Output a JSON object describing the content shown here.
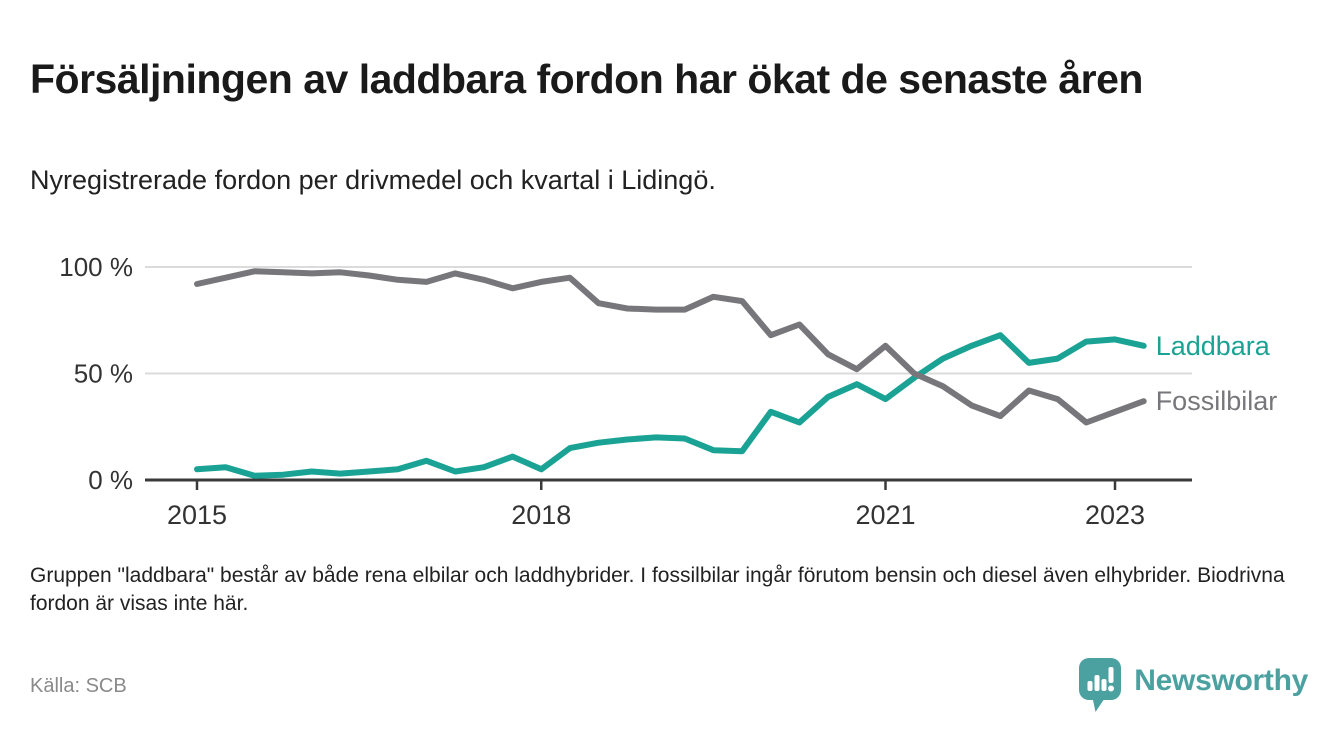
{
  "header": {
    "title": "Försäljningen av laddbara fordon har ökat de senaste åren",
    "subtitle": "Nyregistrerade fordon per drivmedel och kvartal i Lidingö."
  },
  "chart_data": {
    "type": "line",
    "unit": "%",
    "x": [
      "2015 Q1",
      "2015 Q2",
      "2015 Q3",
      "2015 Q4",
      "2016 Q1",
      "2016 Q2",
      "2016 Q3",
      "2016 Q4",
      "2017 Q1",
      "2017 Q2",
      "2017 Q3",
      "2017 Q4",
      "2018 Q1",
      "2018 Q2",
      "2018 Q3",
      "2018 Q4",
      "2019 Q1",
      "2019 Q2",
      "2019 Q3",
      "2019 Q4",
      "2020 Q1",
      "2020 Q2",
      "2020 Q3",
      "2020 Q4",
      "2021 Q1",
      "2021 Q2",
      "2021 Q3",
      "2021 Q4",
      "2022 Q1",
      "2022 Q2",
      "2022 Q3",
      "2022 Q4",
      "2023 Q1",
      "2023 Q2"
    ],
    "series": [
      {
        "name": "Laddbara",
        "color": "#1AA394",
        "values": [
          5,
          6,
          2,
          2.5,
          4,
          3,
          4,
          5,
          9,
          4,
          6,
          11,
          5,
          15,
          17.5,
          19,
          20,
          19.5,
          14,
          13.5,
          32,
          27,
          39,
          45,
          38,
          48,
          57,
          63,
          68,
          55,
          57,
          65,
          66,
          63
        ]
      },
      {
        "name": "Fossilbilar",
        "color": "#77777B",
        "values": [
          92,
          95,
          98,
          97.5,
          97,
          97.5,
          96,
          94,
          93,
          97,
          94,
          90,
          93,
          95,
          83,
          80.5,
          80,
          80,
          86,
          84,
          68,
          73,
          59,
          52,
          63,
          50,
          44,
          35,
          30,
          42,
          38,
          27,
          32,
          37
        ]
      }
    ],
    "x_axis": {
      "tick_labels": [
        "2015",
        "2018",
        "2021",
        "2023"
      ],
      "tick_indices": [
        0,
        12,
        24,
        32
      ]
    },
    "y_axis": {
      "tick_labels": [
        "100 %",
        "50 %",
        "0 %"
      ],
      "tick_values": [
        100,
        50,
        0
      ],
      "min": 0,
      "max": 100
    },
    "grid": "horizontal",
    "legend": "line-end-labels"
  },
  "footer": {
    "note": "Gruppen \"laddbara\" består av både rena elbilar och laddhybrider. I fossilbilar ingår förutom bensin och diesel även elhybrider. Biodrivna fordon är visas inte här.",
    "source": "Källa: SCB"
  },
  "branding": {
    "logo_text": "Newsworthy",
    "logo_color": "#4BA1A0"
  }
}
